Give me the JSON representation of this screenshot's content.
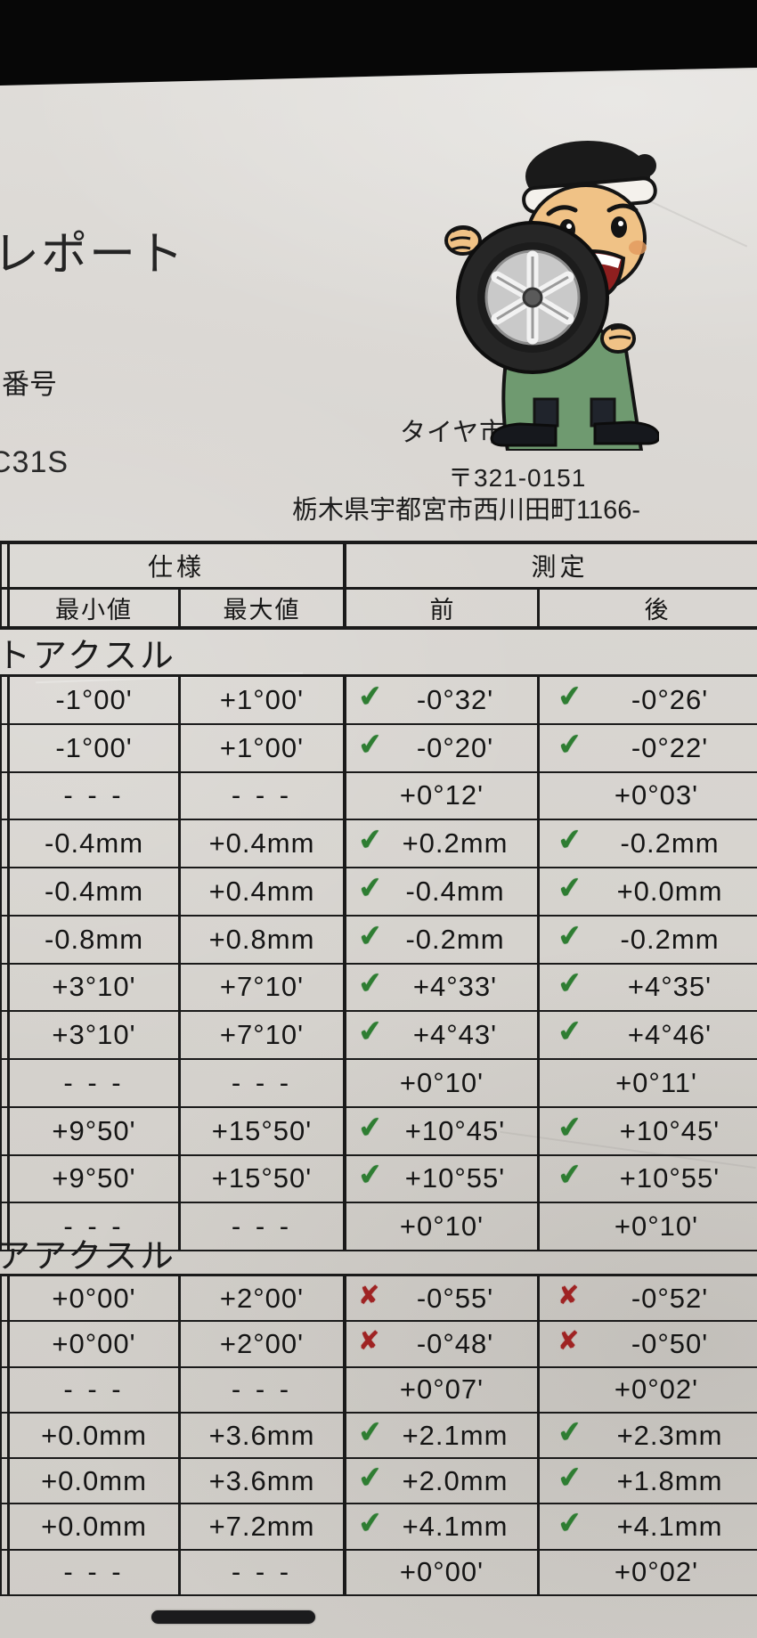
{
  "page": {
    "title": "レポート",
    "number_label": "番号",
    "vehicle_code": "C31S"
  },
  "store": {
    "name": "タイヤ市場西川田店",
    "postal_code": "〒321-0151",
    "address": "栃木県宇都宮市西川田町1166-"
  },
  "table": {
    "header": {
      "spec": "仕様",
      "measure": "測定",
      "min": "最小値",
      "max": "最大値",
      "front": "前",
      "rear": "後"
    },
    "sections": [
      {
        "title": "トアクスル",
        "rows": [
          {
            "min": "-1°00'",
            "max": "+1°00'",
            "front": "-0°32'",
            "front_mark": "check",
            "rear": "-0°26'",
            "rear_mark": "check"
          },
          {
            "min": "-1°00'",
            "max": "+1°00'",
            "front": "-0°20'",
            "front_mark": "check",
            "rear": "-0°22'",
            "rear_mark": "check"
          },
          {
            "min": "- - -",
            "max": "- - -",
            "front": "+0°12'",
            "front_mark": null,
            "rear": "+0°03'",
            "rear_mark": null
          },
          {
            "min": "-0.4mm",
            "max": "+0.4mm",
            "front": "+0.2mm",
            "front_mark": "check",
            "rear": "-0.2mm",
            "rear_mark": "check"
          },
          {
            "min": "-0.4mm",
            "max": "+0.4mm",
            "front": "-0.4mm",
            "front_mark": "check",
            "rear": "+0.0mm",
            "rear_mark": "check"
          },
          {
            "min": "-0.8mm",
            "max": "+0.8mm",
            "front": "-0.2mm",
            "front_mark": "check",
            "rear": "-0.2mm",
            "rear_mark": "check"
          },
          {
            "min": "+3°10'",
            "max": "+7°10'",
            "front": "+4°33'",
            "front_mark": "check",
            "rear": "+4°35'",
            "rear_mark": "check"
          },
          {
            "min": "+3°10'",
            "max": "+7°10'",
            "front": "+4°43'",
            "front_mark": "check",
            "rear": "+4°46'",
            "rear_mark": "check"
          },
          {
            "min": "- - -",
            "max": "- - -",
            "front": "+0°10'",
            "front_mark": null,
            "rear": "+0°11'",
            "rear_mark": null
          },
          {
            "min": "+9°50'",
            "max": "+15°50'",
            "front": "+10°45'",
            "front_mark": "check",
            "rear": "+10°45'",
            "rear_mark": "check"
          },
          {
            "min": "+9°50'",
            "max": "+15°50'",
            "front": "+10°55'",
            "front_mark": "check",
            "rear": "+10°55'",
            "rear_mark": "check"
          },
          {
            "min": "- - -",
            "max": "- - -",
            "front": "+0°10'",
            "front_mark": null,
            "rear": "+0°10'",
            "rear_mark": null
          }
        ]
      },
      {
        "title": "アアクスル",
        "rows": [
          {
            "min": "+0°00'",
            "max": "+2°00'",
            "front": "-0°55'",
            "front_mark": "cross",
            "rear": "-0°52'",
            "rear_mark": "cross"
          },
          {
            "min": "+0°00'",
            "max": "+2°00'",
            "front": "-0°48'",
            "front_mark": "cross",
            "rear": "-0°50'",
            "rear_mark": "cross"
          },
          {
            "min": "- - -",
            "max": "- - -",
            "front": "+0°07'",
            "front_mark": null,
            "rear": "+0°02'",
            "rear_mark": null
          },
          {
            "min": "+0.0mm",
            "max": "+3.6mm",
            "front": "+2.1mm",
            "front_mark": "check",
            "rear": "+2.3mm",
            "rear_mark": "check"
          },
          {
            "min": "+0.0mm",
            "max": "+3.6mm",
            "front": "+2.0mm",
            "front_mark": "check",
            "rear": "+1.8mm",
            "rear_mark": "check"
          },
          {
            "min": "+0.0mm",
            "max": "+7.2mm",
            "front": "+4.1mm",
            "front_mark": "check",
            "rear": "+4.1mm",
            "rear_mark": "check"
          },
          {
            "min": "- - -",
            "max": "- - -",
            "front": "+0°00'",
            "front_mark": null,
            "rear": "+0°02'",
            "rear_mark": null
          }
        ]
      }
    ]
  },
  "marks": {
    "check": "✔",
    "cross": "✘"
  },
  "colors": {
    "check_green": "#2e7d32",
    "cross_red": "#9f2323",
    "paper": "#d6d3ce",
    "background": "#070707"
  }
}
